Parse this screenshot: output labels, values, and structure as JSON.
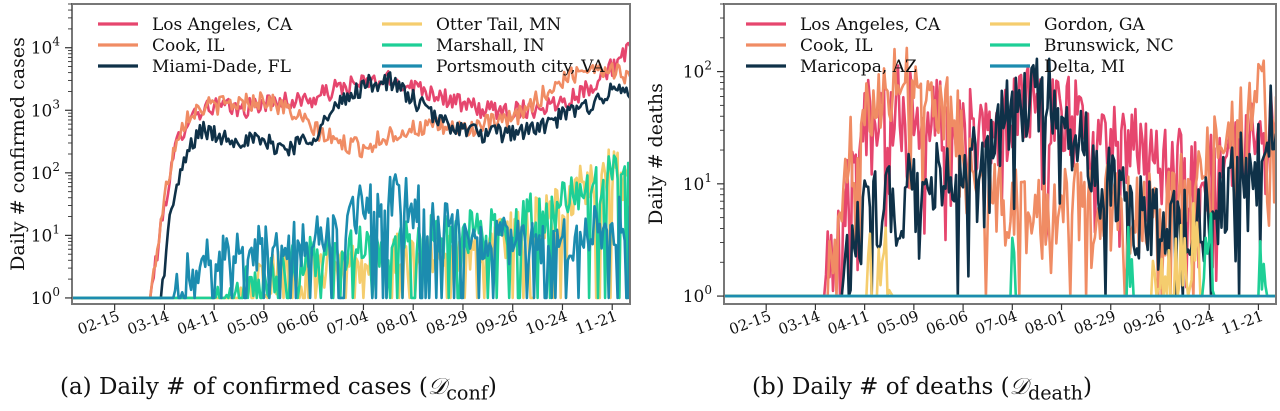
{
  "colors": {
    "los_angeles": "#e6466e",
    "cook": "#f08c64",
    "navy": "#0f3148",
    "yellow": "#f5cd6e",
    "green": "#1ecf96",
    "teal": "#1c8caf",
    "frame": "#777777"
  },
  "captions": {
    "a_text": "(a) Daily # of confirmed cases (",
    "a_math": "𝒟",
    "a_sub": "conf",
    "a_close": ")",
    "b_text": "(b) Daily # of deaths (",
    "b_math": "𝒟",
    "b_sub": "death",
    "b_close": ")"
  },
  "chart_data": [
    {
      "type": "line",
      "ylabel": "Daily # confirmed cases",
      "xlabel": "",
      "yscale": "log",
      "ylim": [
        0.8,
        50000
      ],
      "yticks": [
        "10^0",
        "10^1",
        "10^2",
        "10^3",
        "10^4"
      ],
      "xticks": [
        "02-15",
        "03-14",
        "04-11",
        "05-09",
        "06-06",
        "07-04",
        "08-01",
        "08-29",
        "09-26",
        "10-24",
        "11-21"
      ],
      "x_start": "01-22",
      "x_end": "12-01",
      "legend_loc": "upper left, 2 columns",
      "series": [
        {
          "name": "Los Angeles, CA",
          "color_key": "los_angeles",
          "points": [
            [
              "01-22",
              1
            ],
            [
              "02-28",
              1
            ],
            [
              "03-06",
              1
            ],
            [
              "03-14",
              30
            ],
            [
              "03-21",
              300
            ],
            [
              "03-28",
              800
            ],
            [
              "04-04",
              1000
            ],
            [
              "04-11",
              1200
            ],
            [
              "04-25",
              1000
            ],
            [
              "05-09",
              1300
            ],
            [
              "05-23",
              1400
            ],
            [
              "06-06",
              1500
            ],
            [
              "06-20",
              2300
            ],
            [
              "07-04",
              2700
            ],
            [
              "07-18",
              3000
            ],
            [
              "08-01",
              2500
            ],
            [
              "08-15",
              1800
            ],
            [
              "08-29",
              1200
            ],
            [
              "09-12",
              1000
            ],
            [
              "09-26",
              1000
            ],
            [
              "10-10",
              1100
            ],
            [
              "10-24",
              1400
            ],
            [
              "11-07",
              2200
            ],
            [
              "11-21",
              5000
            ],
            [
              "12-01",
              9000
            ]
          ]
        },
        {
          "name": "Cook, IL",
          "color_key": "cook",
          "points": [
            [
              "01-22",
              1
            ],
            [
              "03-06",
              1
            ],
            [
              "03-14",
              40
            ],
            [
              "03-21",
              400
            ],
            [
              "03-28",
              900
            ],
            [
              "04-04",
              1100
            ],
            [
              "04-11",
              1200
            ],
            [
              "04-25",
              1300
            ],
            [
              "05-09",
              1500
            ],
            [
              "05-23",
              1000
            ],
            [
              "06-06",
              500
            ],
            [
              "06-20",
              300
            ],
            [
              "07-04",
              250
            ],
            [
              "07-18",
              400
            ],
            [
              "08-01",
              500
            ],
            [
              "08-15",
              550
            ],
            [
              "08-29",
              500
            ],
            [
              "09-12",
              600
            ],
            [
              "09-26",
              700
            ],
            [
              "10-10",
              1500
            ],
            [
              "10-24",
              3000
            ],
            [
              "11-07",
              5000
            ],
            [
              "11-21",
              4500
            ],
            [
              "12-01",
              3500
            ]
          ]
        },
        {
          "name": "Miami-Dade, FL",
          "color_key": "navy",
          "points": [
            [
              "01-22",
              1
            ],
            [
              "03-12",
              1
            ],
            [
              "03-18",
              30
            ],
            [
              "03-28",
              250
            ],
            [
              "04-04",
              500
            ],
            [
              "04-11",
              400
            ],
            [
              "04-25",
              350
            ],
            [
              "05-09",
              300
            ],
            [
              "05-23",
              250
            ],
            [
              "06-06",
              400
            ],
            [
              "06-20",
              1200
            ],
            [
              "07-04",
              2500
            ],
            [
              "07-18",
              3000
            ],
            [
              "08-01",
              1500
            ],
            [
              "08-15",
              700
            ],
            [
              "08-29",
              500
            ],
            [
              "09-12",
              400
            ],
            [
              "09-26",
              450
            ],
            [
              "10-10",
              500
            ],
            [
              "10-24",
              800
            ],
            [
              "11-07",
              1200
            ],
            [
              "11-21",
              2000
            ],
            [
              "12-01",
              2200
            ]
          ]
        },
        {
          "name": "Otter Tail, MN",
          "color_key": "yellow",
          "points": [
            [
              "01-22",
              1
            ],
            [
              "04-25",
              1
            ],
            [
              "05-09",
              2
            ],
            [
              "06-06",
              3
            ],
            [
              "07-04",
              4
            ],
            [
              "08-01",
              5
            ],
            [
              "08-29",
              6
            ],
            [
              "09-26",
              10
            ],
            [
              "10-24",
              30
            ],
            [
              "11-07",
              80
            ],
            [
              "11-21",
              120
            ],
            [
              "12-01",
              70
            ]
          ]
        },
        {
          "name": "Marshall, IN",
          "color_key": "green",
          "points": [
            [
              "01-22",
              1
            ],
            [
              "04-11",
              1
            ],
            [
              "05-09",
              2
            ],
            [
              "06-06",
              5
            ],
            [
              "07-04",
              6
            ],
            [
              "08-01",
              8
            ],
            [
              "08-29",
              10
            ],
            [
              "09-26",
              15
            ],
            [
              "10-24",
              30
            ],
            [
              "11-07",
              60
            ],
            [
              "11-21",
              90
            ],
            [
              "12-01",
              60
            ]
          ]
        },
        {
          "name": "Portsmouth city, VA",
          "color_key": "teal",
          "points": [
            [
              "01-22",
              1
            ],
            [
              "03-18",
              1
            ],
            [
              "03-28",
              3
            ],
            [
              "04-11",
              5
            ],
            [
              "05-09",
              6
            ],
            [
              "06-06",
              8
            ],
            [
              "06-20",
              12
            ],
            [
              "07-04",
              30
            ],
            [
              "07-18",
              50
            ],
            [
              "08-01",
              30
            ],
            [
              "08-15",
              15
            ],
            [
              "08-29",
              10
            ],
            [
              "09-26",
              8
            ],
            [
              "10-24",
              8
            ],
            [
              "11-21",
              15
            ],
            [
              "12-01",
              20
            ]
          ]
        }
      ]
    },
    {
      "type": "line",
      "ylabel": "Daily # deaths",
      "xlabel": "",
      "yscale": "log",
      "ylim": [
        0.85,
        400
      ],
      "yticks": [
        "10^0",
        "10^1",
        "10^2"
      ],
      "xticks": [
        "02-15",
        "03-14",
        "04-11",
        "05-09",
        "06-06",
        "07-04",
        "08-01",
        "08-29",
        "09-26",
        "10-24",
        "11-21"
      ],
      "x_start": "01-22",
      "x_end": "12-01",
      "legend_loc": "upper left, 2 columns",
      "series": [
        {
          "name": "Los Angeles, CA",
          "color_key": "los_angeles",
          "points": [
            [
              "01-22",
              1
            ],
            [
              "03-18",
              1
            ],
            [
              "03-25",
              3
            ],
            [
              "04-04",
              15
            ],
            [
              "04-11",
              40
            ],
            [
              "04-25",
              50
            ],
            [
              "05-09",
              45
            ],
            [
              "05-23",
              40
            ],
            [
              "06-06",
              30
            ],
            [
              "06-20",
              25
            ],
            [
              "07-04",
              40
            ],
            [
              "07-18",
              50
            ],
            [
              "08-01",
              45
            ],
            [
              "08-15",
              35
            ],
            [
              "08-29",
              25
            ],
            [
              "09-12",
              20
            ],
            [
              "09-26",
              15
            ],
            [
              "10-10",
              12
            ],
            [
              "10-24",
              12
            ],
            [
              "11-07",
              15
            ],
            [
              "11-21",
              25
            ],
            [
              "12-01",
              40
            ]
          ]
        },
        {
          "name": "Cook, IL",
          "color_key": "cook",
          "points": [
            [
              "01-22",
              1
            ],
            [
              "03-20",
              1
            ],
            [
              "03-28",
              5
            ],
            [
              "04-04",
              20
            ],
            [
              "04-11",
              60
            ],
            [
              "04-25",
              80
            ],
            [
              "05-09",
              90
            ],
            [
              "05-23",
              60
            ],
            [
              "06-06",
              25
            ],
            [
              "06-20",
              10
            ],
            [
              "07-04",
              6
            ],
            [
              "07-18",
              5
            ],
            [
              "08-01",
              6
            ],
            [
              "08-15",
              7
            ],
            [
              "08-29",
              6
            ],
            [
              "09-12",
              5
            ],
            [
              "09-26",
              6
            ],
            [
              "10-10",
              8
            ],
            [
              "10-24",
              15
            ],
            [
              "11-07",
              30
            ],
            [
              "11-21",
              60
            ],
            [
              "12-01",
              45
            ]
          ]
        },
        {
          "name": "Maricopa, AZ",
          "color_key": "navy",
          "points": [
            [
              "01-22",
              1
            ],
            [
              "03-25",
              1
            ],
            [
              "04-04",
              3
            ],
            [
              "04-11",
              5
            ],
            [
              "04-25",
              6
            ],
            [
              "05-09",
              8
            ],
            [
              "05-23",
              10
            ],
            [
              "06-06",
              10
            ],
            [
              "06-20",
              20
            ],
            [
              "07-04",
              50
            ],
            [
              "07-18",
              70
            ],
            [
              "08-01",
              40
            ],
            [
              "08-15",
              20
            ],
            [
              "08-29",
              8
            ],
            [
              "09-12",
              5
            ],
            [
              "09-26",
              4
            ],
            [
              "10-10",
              4
            ],
            [
              "10-24",
              5
            ],
            [
              "11-07",
              10
            ],
            [
              "11-21",
              25
            ],
            [
              "12-01",
              35
            ]
          ]
        },
        {
          "name": "Gordon, GA",
          "color_key": "yellow",
          "points": [
            [
              "01-22",
              1
            ],
            [
              "04-11",
              1
            ],
            [
              "04-13",
              2
            ],
            [
              "04-16",
              1
            ],
            [
              "04-25",
              2
            ],
            [
              "04-27",
              1
            ],
            [
              "09-20",
              1
            ],
            [
              "09-22",
              2
            ],
            [
              "09-24",
              1
            ],
            [
              "10-16",
              3
            ],
            [
              "10-19",
              1
            ],
            [
              "12-01",
              1
            ]
          ]
        },
        {
          "name": "Brunswick, NC",
          "color_key": "green",
          "points": [
            [
              "01-22",
              1
            ],
            [
              "07-02",
              1
            ],
            [
              "07-05",
              2
            ],
            [
              "07-08",
              1
            ],
            [
              "09-05",
              1
            ],
            [
              "09-08",
              2
            ],
            [
              "09-11",
              1
            ],
            [
              "10-20",
              1
            ],
            [
              "10-24",
              3
            ],
            [
              "10-28",
              1
            ],
            [
              "11-18",
              1
            ],
            [
              "11-22",
              2
            ],
            [
              "11-26",
              1
            ],
            [
              "12-01",
              1
            ]
          ]
        },
        {
          "name": "Delta, MI",
          "color_key": "teal",
          "points": [
            [
              "01-22",
              1
            ],
            [
              "12-01",
              1
            ]
          ]
        }
      ]
    }
  ]
}
